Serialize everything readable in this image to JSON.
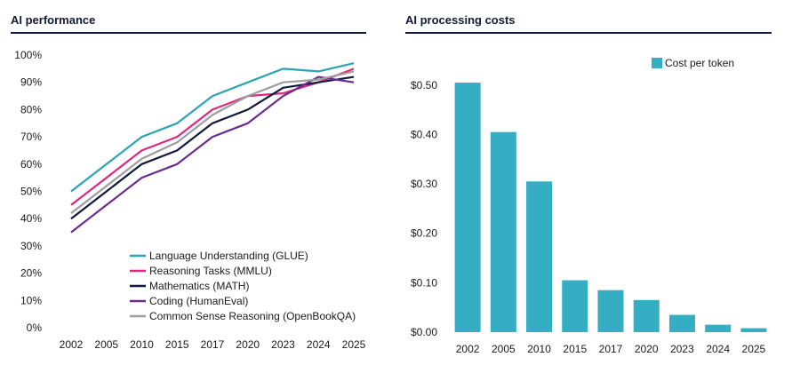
{
  "chart_data": [
    {
      "type": "line",
      "title": "AI performance",
      "categories": [
        "2002",
        "2005",
        "2010",
        "2015",
        "2017",
        "2020",
        "2023",
        "2024",
        "2025"
      ],
      "ylim": [
        0,
        100
      ],
      "yticks": [
        "0%",
        "10%",
        "20%",
        "30%",
        "40%",
        "50%",
        "60%",
        "70%",
        "80%",
        "90%",
        "100%"
      ],
      "grid": false,
      "legend_position": "bottom-right",
      "series": [
        {
          "name": "Language Understanding (GLUE)",
          "color": "#2aa3b5",
          "values": [
            50,
            60,
            70,
            75,
            85,
            90,
            95,
            94,
            97
          ]
        },
        {
          "name": "Reasoning Tasks (MMLU)",
          "color": "#e0287a",
          "values": [
            45,
            55,
            65,
            70,
            80,
            85,
            86,
            90,
            95
          ]
        },
        {
          "name": "Mathematics (MATH)",
          "color": "#111a3a",
          "values": [
            40,
            50,
            60,
            65,
            75,
            80,
            88,
            90,
            92
          ]
        },
        {
          "name": "Coding (HumanEval)",
          "color": "#6b2c8f",
          "values": [
            35,
            45,
            55,
            60,
            70,
            75,
            85,
            92,
            90
          ]
        },
        {
          "name": "Common Sense Reasoning (OpenBookQA)",
          "color": "#9e9e9e",
          "values": [
            42,
            52,
            62,
            68,
            78,
            85,
            90,
            91,
            94
          ]
        }
      ]
    },
    {
      "type": "bar",
      "title": "AI processing costs",
      "categories": [
        "2002",
        "2005",
        "2010",
        "2015",
        "2017",
        "2020",
        "2023",
        "2024",
        "2025"
      ],
      "series": [
        {
          "name": "Cost per token",
          "color": "#35aec3",
          "values": [
            0.505,
            0.405,
            0.305,
            0.105,
            0.085,
            0.065,
            0.035,
            0.015,
            0.008
          ]
        }
      ],
      "ylim": [
        0,
        0.55
      ],
      "yticks": [
        "$0.00",
        "$0.10",
        "$0.20",
        "$0.30",
        "$0.40",
        "$0.50"
      ],
      "legend_position": "top-right"
    }
  ],
  "panels": {
    "left_title": "AI performance",
    "right_title": "AI processing costs"
  }
}
